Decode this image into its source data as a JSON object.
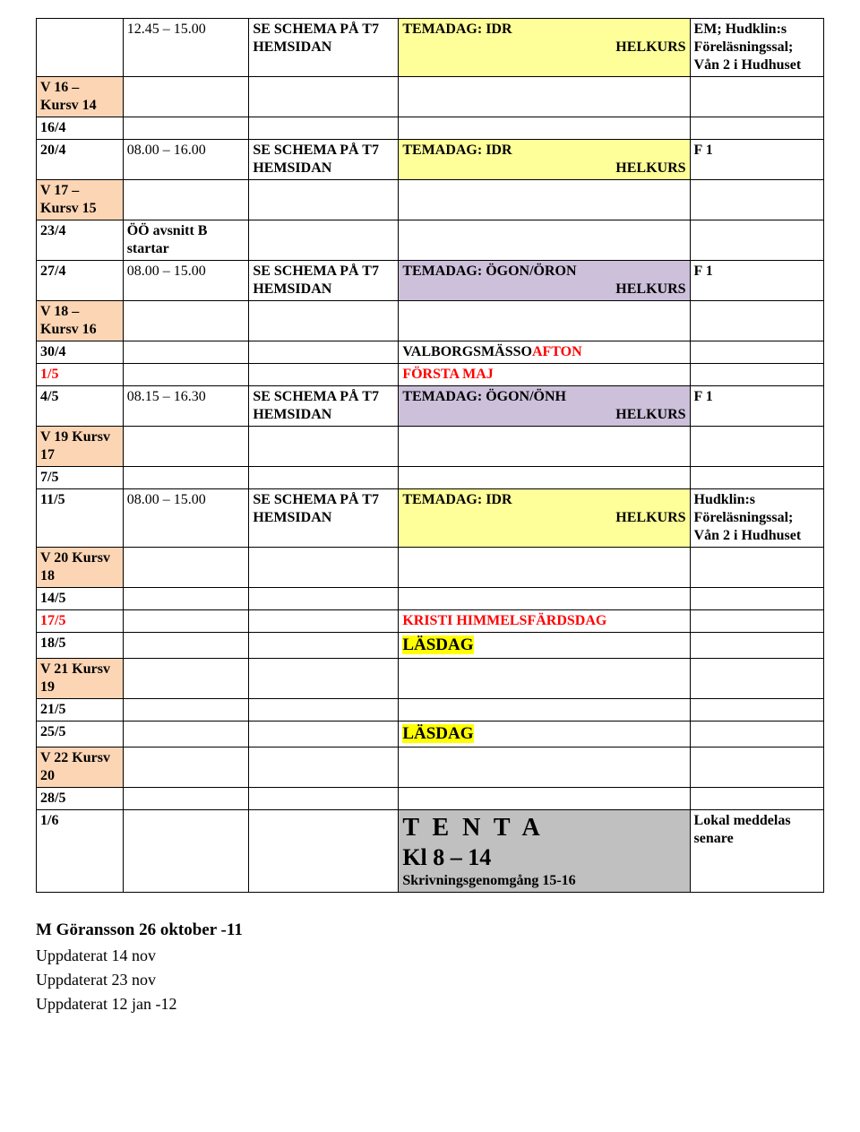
{
  "colors": {
    "peach": "#fcd5b4",
    "yellow": "#ffff99",
    "purple": "#ccc0da",
    "bright_yellow": "#ffff00",
    "gray": "#c0c0c0",
    "red": "#ff0000",
    "border": "#000000",
    "background": "#ffffff"
  },
  "rows": {
    "r0": {
      "time": "12.45 – 15.00",
      "activity": "SE SCHEMA PÅ T7 HEMSIDAN",
      "event_main": "TEMADAG: IDR",
      "event_sub": "HELKURS",
      "note": "EM; Hudklin:s Föreläsningssal; Vån 2 i Hudhuset"
    },
    "r1": {
      "label": "V 16 – Kursv 14"
    },
    "r2": {
      "label": "16/4"
    },
    "r3": {
      "label": "20/4",
      "time": "08.00 – 16.00",
      "activity": "SE SCHEMA PÅ T7 HEMSIDAN",
      "event_main": "TEMADAG: IDR",
      "event_sub": "HELKURS",
      "note": "F 1"
    },
    "r4": {
      "label": "V 17 – Kursv 15"
    },
    "r5": {
      "label": "23/4",
      "time": "ÖÖ avsnitt B startar"
    },
    "r6": {
      "label": "27/4",
      "time": "08.00 – 15.00",
      "activity": "SE SCHEMA PÅ T7 HEMSIDAN",
      "event_main": "TEMADAG: ÖGON/ÖRON",
      "event_sub": "HELKURS",
      "note": "F 1"
    },
    "r7": {
      "label": "V 18 – Kursv 16"
    },
    "r8": {
      "label": "30/4",
      "event_main": "VALBORGSMÄSSO",
      "event_red": "AFTON"
    },
    "r9": {
      "label": "1/5",
      "event_main": "FÖRSTA MAJ"
    },
    "r10": {
      "label": "4/5",
      "time": "08.15 – 16.30",
      "activity": "SE SCHEMA PÅ T7 HEMSIDAN",
      "event_main": "TEMADAG: ÖGON/ÖNH",
      "event_sub": "HELKURS",
      "note": "F 1"
    },
    "r11": {
      "label": "V 19 Kursv 17"
    },
    "r12": {
      "label": "7/5"
    },
    "r13": {
      "label": "11/5",
      "time": "08.00 – 15.00",
      "activity": "SE SCHEMA PÅ T7 HEMSIDAN",
      "event_main": "TEMADAG: IDR",
      "event_sub": "HELKURS",
      "note": "Hudklin:s Föreläsningssal; Vån 2 i Hudhuset"
    },
    "r14": {
      "label": "V 20 Kursv 18"
    },
    "r15": {
      "label": "14/5"
    },
    "r16": {
      "label": "17/5",
      "event_main": "KRISTI HIMMELSFÄRDSDAG"
    },
    "r17": {
      "label": "18/5",
      "event_main": "LÄSDAG"
    },
    "r18": {
      "label": "V 21 Kursv 19"
    },
    "r19": {
      "label": "21/5"
    },
    "r20": {
      "label": "25/5",
      "event_main": "LÄSDAG"
    },
    "r21": {
      "label": "V 22 Kursv 20"
    },
    "r22": {
      "label": "28/5"
    },
    "r23": {
      "label": "1/6",
      "tenta": "T E N T A",
      "kl": "Kl 8 – 14",
      "skriv": "Skrivningsgenomgång 15-16",
      "note": "Lokal meddelas senare"
    }
  },
  "footer": {
    "author": "M Göransson 26 oktober -11",
    "u1": "Uppdaterat 14 nov",
    "u2": "Uppdaterat 23 nov",
    "u3": "Uppdaterat 12 jan -12"
  }
}
